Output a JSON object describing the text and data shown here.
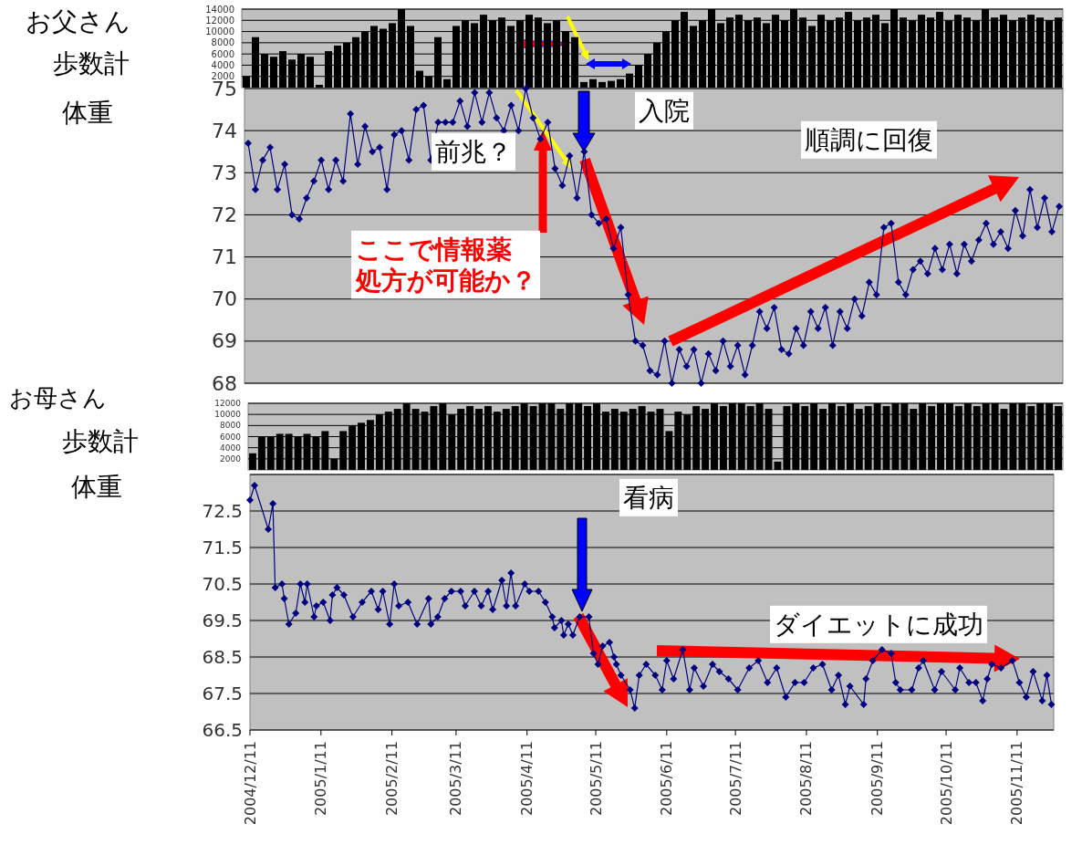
{
  "chart_data": [
    {
      "type": "bar",
      "title": "お父さん",
      "ylabel": "歩数計",
      "color": "#000000",
      "ylim": [
        0,
        14000
      ],
      "yticks": [
        2000,
        4000,
        6000,
        8000,
        10000,
        12000,
        14000
      ],
      "grid": "y",
      "tick_labels": "y",
      "categories": [
        null,
        null,
        null,
        null,
        null,
        null,
        null,
        null,
        null,
        null,
        null,
        null,
        null,
        null,
        null,
        null,
        null,
        null,
        null,
        null,
        null,
        null,
        null,
        null,
        null,
        null,
        null,
        null,
        null,
        null,
        null,
        null,
        null,
        null,
        null,
        null,
        null,
        null,
        null,
        null,
        null,
        null,
        null,
        null,
        null,
        null,
        null,
        null,
        null,
        null,
        null,
        null,
        null,
        null,
        null,
        null,
        null,
        null,
        null,
        null,
        null,
        null,
        null,
        null,
        null,
        null,
        null,
        null,
        null,
        null,
        null,
        null,
        null,
        null,
        null,
        null,
        null,
        null,
        null,
        null,
        null,
        null,
        null,
        null,
        null,
        null,
        null,
        null,
        null,
        null
      ],
      "values": [
        2000,
        9000,
        6000,
        5500,
        6500,
        5000,
        6000,
        5500,
        500,
        6500,
        7500,
        8000,
        9000,
        10000,
        11000,
        10500,
        11500,
        14000,
        11000,
        3000,
        2000,
        9000,
        1500,
        11000,
        12000,
        11500,
        13000,
        12000,
        12500,
        11000,
        12000,
        13000,
        12500,
        11500,
        12000,
        10000,
        9000,
        1000,
        1500,
        1000,
        1200,
        1500,
        2500,
        4000,
        6000,
        8000,
        10000,
        12000,
        13500,
        11000,
        12000,
        14000,
        11500,
        12500,
        13000,
        12000,
        12500,
        11500,
        13000,
        12000,
        14000,
        12500,
        11000,
        13000,
        12000,
        12500,
        13500,
        12000,
        12500,
        13000,
        11500,
        14000,
        12500,
        12000,
        13000,
        12500,
        13500,
        12000,
        13000,
        12500,
        12000,
        14000,
        12500,
        13000,
        12000,
        12500,
        13000,
        12500,
        12000,
        12500
      ]
    },
    {
      "type": "line",
      "ylabel": "体重",
      "color": "#000080",
      "marker": "diamond",
      "ylim": [
        68,
        75
      ],
      "yticks": [
        68,
        69,
        70,
        71,
        72,
        73,
        74,
        75
      ],
      "grid": "y",
      "tick_labels": "y",
      "categories": [
        null,
        null,
        null,
        null,
        null,
        null,
        null,
        null,
        null,
        null,
        null,
        null,
        null,
        null,
        null,
        null,
        null,
        null,
        null,
        null,
        null,
        null,
        null,
        null,
        null,
        null,
        null,
        null,
        null,
        null,
        null,
        null,
        null,
        null,
        null,
        null,
        null,
        null,
        null,
        null,
        null,
        null,
        null,
        null,
        null,
        null,
        null,
        null,
        null,
        null,
        null,
        null,
        null,
        null,
        null,
        null,
        null,
        null,
        null,
        null,
        null,
        null,
        null,
        null,
        null,
        null,
        null,
        null,
        null,
        null,
        null,
        null,
        null,
        null,
        null,
        null,
        null,
        null,
        null,
        null,
        null,
        null,
        null,
        null,
        null,
        null,
        null,
        null,
        null,
        null,
        null,
        null,
        null,
        null,
        null,
        null,
        null,
        null,
        null,
        null,
        null,
        null,
        null,
        null,
        null,
        null,
        null,
        null,
        null,
        null,
        null,
        null
      ],
      "values": [
        73.7,
        72.6,
        73.3,
        73.6,
        72.6,
        73.2,
        72.0,
        71.9,
        72.4,
        72.8,
        73.3,
        72.6,
        73.3,
        72.8,
        74.4,
        73.2,
        74.1,
        73.5,
        73.6,
        72.6,
        73.9,
        74.0,
        73.3,
        74.5,
        74.6,
        73.3,
        74.2,
        74.2,
        74.2,
        74.7,
        74.1,
        74.9,
        74.2,
        74.9,
        74.3,
        74.0,
        74.6,
        74.0,
        75.0,
        74.3,
        73.8,
        74.2,
        73.1,
        72.7,
        73.4,
        72.4,
        73.5,
        72.0,
        71.8,
        71.9,
        71.2,
        71.7,
        70.1,
        69.0,
        68.9,
        68.3,
        68.2,
        69.0,
        68.0,
        68.8,
        68.4,
        68.8,
        68.0,
        68.7,
        68.3,
        69.0,
        68.4,
        68.9,
        68.2,
        68.9,
        69.7,
        69.3,
        69.8,
        68.8,
        68.7,
        69.3,
        68.9,
        69.7,
        69.3,
        69.8,
        68.9,
        69.7,
        69.3,
        70.0,
        69.6,
        70.4,
        70.1,
        71.7,
        71.8,
        70.4,
        70.1,
        70.7,
        70.9,
        70.6,
        71.2,
        70.7,
        71.3,
        70.6,
        71.3,
        70.9,
        71.4,
        71.8,
        71.3,
        71.6,
        71.2,
        72.1,
        71.5,
        72.6,
        71.7,
        72.4,
        71.6,
        72.2
      ],
      "annotations": [
        "前兆？",
        "入院",
        "順調に回復",
        "ここで情報薬処方が可能か？"
      ]
    },
    {
      "type": "bar",
      "title": "お母さん",
      "ylabel": "歩数計",
      "color": "#000000",
      "ylim": [
        0,
        12000
      ],
      "yticks": [
        2000,
        4000,
        6000,
        8000,
        10000,
        12000
      ],
      "grid": "y",
      "tick_labels": "y",
      "categories": [
        null,
        null,
        null,
        null,
        null,
        null,
        null,
        null,
        null,
        null,
        null,
        null,
        null,
        null,
        null,
        null,
        null,
        null,
        null,
        null,
        null,
        null,
        null,
        null,
        null,
        null,
        null,
        null,
        null,
        null,
        null,
        null,
        null,
        null,
        null,
        null,
        null,
        null,
        null,
        null,
        null,
        null,
        null,
        null,
        null,
        null,
        null,
        null,
        null,
        null,
        null,
        null,
        null,
        null,
        null,
        null,
        null,
        null,
        null,
        null,
        null,
        null,
        null,
        null,
        null,
        null,
        null,
        null,
        null,
        null,
        null,
        null,
        null,
        null,
        null,
        null,
        null,
        null,
        null,
        null,
        null,
        null,
        null,
        null,
        null,
        null,
        null,
        null,
        null,
        null
      ],
      "values": [
        3000,
        6000,
        6000,
        6500,
        6500,
        6000,
        6500,
        6000,
        7000,
        2000,
        7000,
        8000,
        8500,
        9000,
        10000,
        10500,
        11000,
        12000,
        11000,
        10500,
        11500,
        12000,
        10000,
        11000,
        11500,
        11000,
        11500,
        10500,
        11000,
        11500,
        12000,
        11500,
        12000,
        12000,
        11000,
        12000,
        12000,
        11500,
        12000,
        10500,
        11000,
        10500,
        11000,
        11500,
        10500,
        11000,
        7000,
        10500,
        10000,
        11500,
        11000,
        12000,
        11500,
        12000,
        12000,
        11500,
        12000,
        11000,
        1500,
        11500,
        12000,
        11500,
        12000,
        11000,
        12000,
        11500,
        12000,
        11000,
        11500,
        12000,
        11500,
        12000,
        12000,
        11000,
        12000,
        11500,
        12000,
        12000,
        11500,
        12000,
        11500,
        12000,
        12000,
        11000,
        12000,
        12000,
        11500,
        12000,
        12000,
        11500
      ]
    },
    {
      "type": "line",
      "ylabel": "体重",
      "color": "#000080",
      "marker": "diamond",
      "ylim": [
        66.5,
        73.5
      ],
      "yticks": [
        66.5,
        67.5,
        68.5,
        69.5,
        70.5,
        71.5,
        72.5,
        {
          "value": 73.5,
          "label": null
        }
      ],
      "grid": "y",
      "xlim": [
        "2004-12-11",
        "2005-11-27"
      ],
      "xticks": [
        {
          "value": "2004-12-11",
          "label": "2004/12/11"
        },
        {
          "value": "2005-01-11",
          "label": "2005/1/11"
        },
        {
          "value": "2005-02-11",
          "label": "2005/2/11"
        },
        {
          "value": "2005-03-11",
          "label": "2005/3/11"
        },
        {
          "value": "2005-04-11",
          "label": "2005/4/11"
        },
        {
          "value": "2005-05-11",
          "label": "2005/5/11"
        },
        {
          "value": "2005-06-11",
          "label": "2005/6/11"
        },
        {
          "value": "2005-07-11",
          "label": "2005/7/11"
        },
        {
          "value": "2005-08-11",
          "label": "2005/8/11"
        },
        {
          "value": "2005-09-11",
          "label": "2005/9/11"
        },
        {
          "value": "2005-10-11",
          "label": "2005/10/11"
        },
        {
          "value": "2005-11-11",
          "label": "2005/11/11"
        }
      ],
      "x": [
        "2004-12-11",
        "2004-12-13",
        "2004-12-19",
        "2004-12-21",
        "2004-12-22",
        "2004-12-25",
        "2004-12-26",
        "2004-12-28",
        "2004-12-31",
        "2005-01-02",
        "2005-01-04",
        "2005-01-05",
        "2005-01-08",
        "2005-01-09",
        "2005-01-12",
        "2005-01-15",
        "2005-01-16",
        "2005-01-18",
        "2005-01-21",
        "2005-01-25",
        "2005-01-29",
        "2005-02-02",
        "2005-02-05",
        "2005-02-07",
        "2005-02-10",
        "2005-02-12",
        "2005-02-14",
        "2005-02-18",
        "2005-02-22",
        "2005-02-27",
        "2005-02-28",
        "2005-03-03",
        "2005-03-06",
        "2005-03-09",
        "2005-03-13",
        "2005-03-15",
        "2005-03-19",
        "2005-03-22",
        "2005-03-25",
        "2005-03-27",
        "2005-03-31",
        "2005-04-02",
        "2005-04-04",
        "2005-04-06",
        "2005-04-10",
        "2005-04-12",
        "2005-04-16",
        "2005-04-19",
        "2005-04-22",
        "2005-04-23",
        "2005-04-26",
        "2005-04-27",
        "2005-04-29",
        "2005-05-01",
        "2005-05-04",
        "2005-05-08",
        "2005-05-10",
        "2005-05-12",
        "2005-05-14",
        "2005-05-17",
        "2005-05-19",
        "2005-05-20",
        "2005-05-22",
        "2005-05-26",
        "2005-05-28",
        "2005-05-30",
        "2005-06-02",
        "2005-06-06",
        "2005-06-09",
        "2005-06-11",
        "2005-06-14",
        "2005-06-18",
        "2005-06-21",
        "2005-06-23",
        "2005-06-27",
        "2005-07-01",
        "2005-07-04",
        "2005-07-08",
        "2005-07-12",
        "2005-07-17",
        "2005-07-21",
        "2005-07-25",
        "2005-07-29",
        "2005-08-02",
        "2005-08-06",
        "2005-08-10",
        "2005-08-14",
        "2005-08-18",
        "2005-08-22",
        "2005-08-25",
        "2005-08-28",
        "2005-08-30",
        "2005-09-05",
        "2005-09-06",
        "2005-09-09",
        "2005-09-13",
        "2005-09-17",
        "2005-09-19",
        "2005-09-21",
        "2005-09-26",
        "2005-09-29",
        "2005-10-01",
        "2005-10-06",
        "2005-10-09",
        "2005-10-15",
        "2005-10-17",
        "2005-10-21",
        "2005-10-24",
        "2005-10-27",
        "2005-10-29",
        "2005-10-31",
        "2005-11-04",
        "2005-11-09",
        "2005-11-12",
        "2005-11-15",
        "2005-11-18",
        "2005-11-22",
        "2005-11-24",
        "2005-11-26"
      ],
      "values": [
        72.8,
        73.2,
        72.0,
        72.7,
        70.4,
        70.5,
        70.1,
        69.4,
        69.7,
        70.5,
        70.0,
        70.5,
        69.6,
        69.9,
        70.0,
        69.5,
        70.2,
        70.4,
        70.2,
        69.6,
        70.0,
        70.3,
        69.8,
        70.3,
        69.4,
        70.5,
        69.9,
        70.0,
        69.4,
        70.1,
        69.4,
        69.6,
        70.1,
        70.3,
        70.3,
        69.9,
        70.3,
        69.9,
        70.3,
        69.8,
        70.6,
        69.9,
        70.8,
        69.9,
        70.5,
        70.3,
        70.3,
        70.0,
        69.6,
        69.3,
        69.5,
        69.1,
        69.4,
        69.1,
        69.6,
        69.6,
        68.6,
        68.3,
        68.8,
        68.9,
        68.5,
        68.3,
        68.0,
        67.6,
        67.1,
        68.0,
        68.3,
        68.0,
        67.6,
        68.4,
        67.9,
        68.7,
        67.6,
        68.2,
        67.7,
        68.3,
        68.1,
        67.9,
        67.6,
        68.2,
        68.4,
        67.8,
        68.2,
        67.4,
        67.8,
        67.8,
        68.2,
        68.3,
        67.6,
        68.0,
        67.2,
        67.7,
        67.2,
        67.9,
        68.4,
        68.7,
        68.6,
        67.8,
        67.6,
        67.6,
        68.2,
        68.4,
        67.6,
        68.1,
        67.6,
        68.2,
        67.8,
        67.8,
        67.3,
        67.9,
        68.3,
        68.2,
        68.4,
        67.8,
        67.4,
        68.1,
        67.3,
        68.0,
        67.2
      ],
      "annotations": [
        "看病",
        "ダイエットに成功"
      ]
    }
  ]
}
